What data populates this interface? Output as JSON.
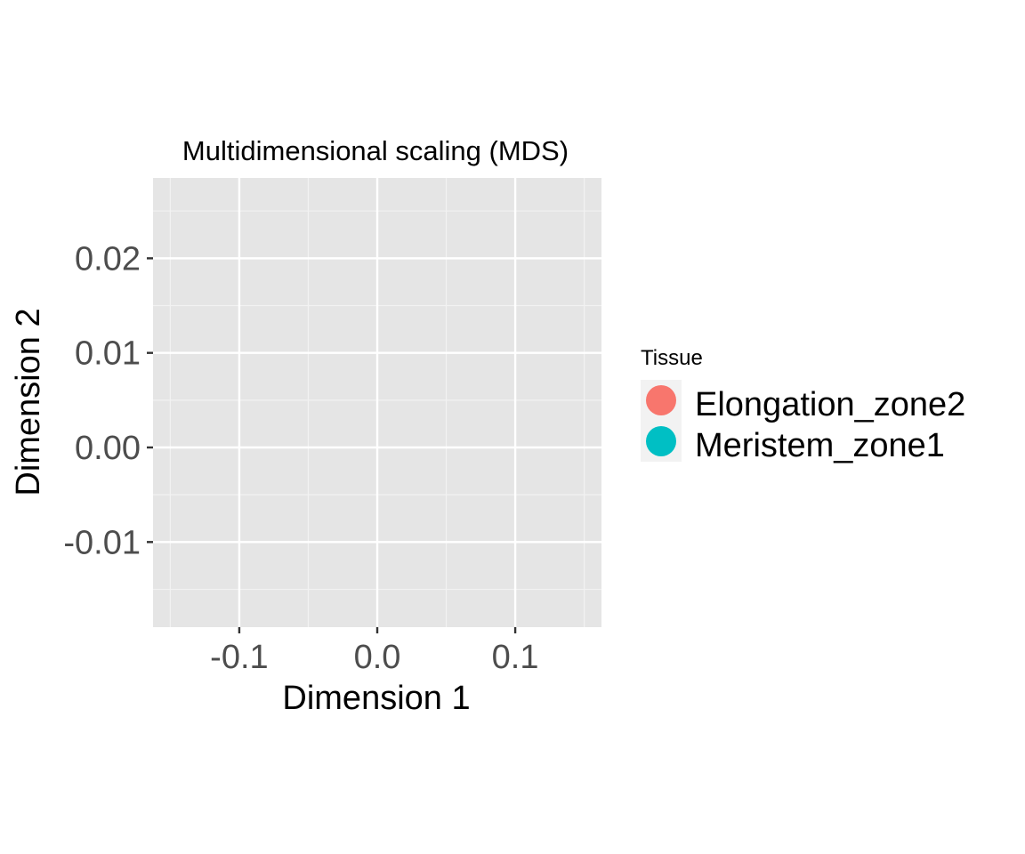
{
  "chart_data": {
    "type": "scatter",
    "title": "Multidimensional scaling (MDS)",
    "xlabel": "Dimension 1",
    "ylabel": "Dimension 2",
    "xlim": [
      -0.1625,
      0.1625
    ],
    "ylim": [
      -0.019,
      0.0285
    ],
    "x_ticks": [
      -0.1,
      0.0,
      0.1
    ],
    "x_tick_labels": [
      "-0.1",
      "0.0",
      "0.1"
    ],
    "y_ticks": [
      -0.01,
      0.0,
      0.01,
      0.02
    ],
    "y_tick_labels": [
      "-0.01",
      "0.00",
      "0.01",
      "0.02"
    ],
    "grid": true,
    "legend": {
      "title": "Tissue",
      "position": "right",
      "entries": [
        {
          "label": "Elongation_zone2",
          "color": "#F8766D"
        },
        {
          "label": "Meristem_zone1",
          "color": "#00BFC4"
        }
      ]
    },
    "series": [
      {
        "name": "Elongation_zone2",
        "color": "#F8766D",
        "points": []
      },
      {
        "name": "Meristem_zone1",
        "color": "#00BFC4",
        "points": []
      }
    ]
  },
  "colors": {
    "panel_background": "#E5E5E5",
    "grid_major": "#FFFFFF",
    "grid_minor": "#F2F2F2",
    "tick_mark": "#333333"
  }
}
